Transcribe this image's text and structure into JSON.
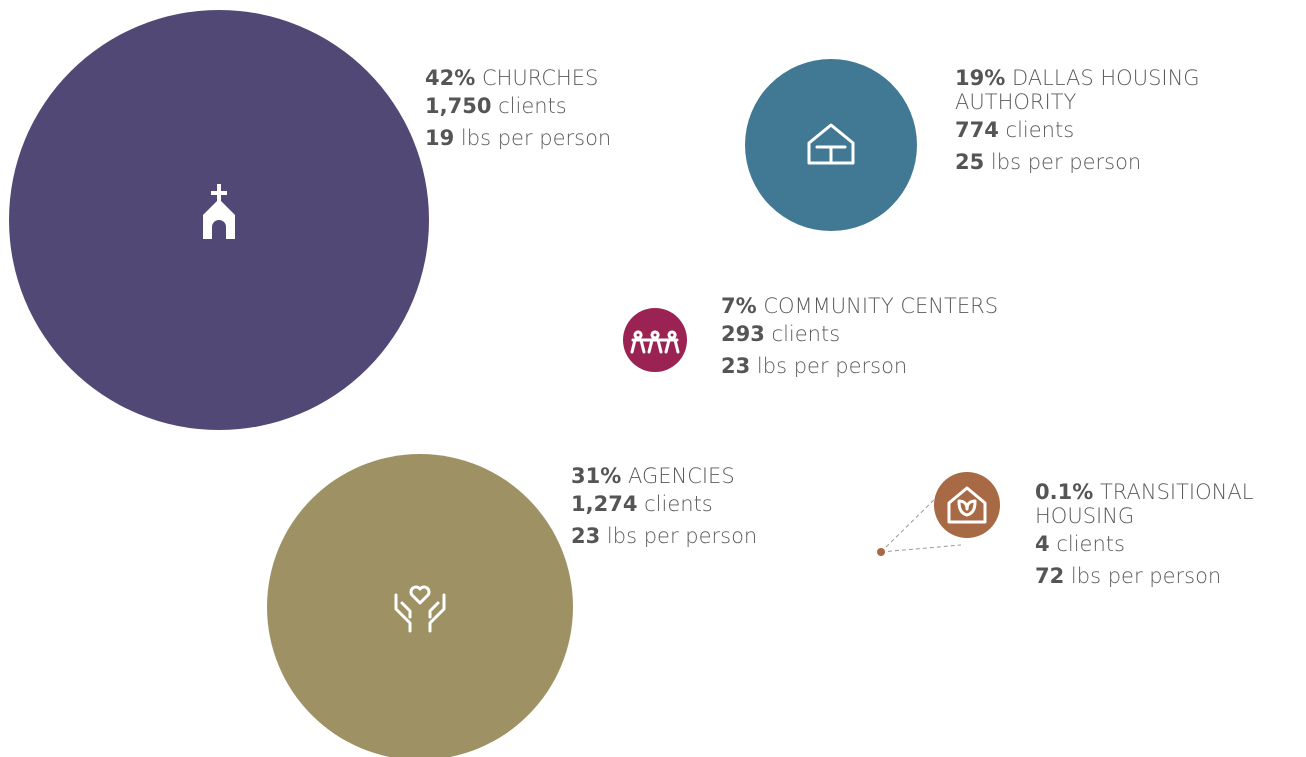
{
  "chart_data": {
    "type": "bubble",
    "categories": [
      "CHURCHES",
      "DALLAS HOUSING AUTHORITY",
      "COMMUNITY CENTERS",
      "AGENCIES",
      "TRANSITIONAL HOUSING"
    ],
    "values": [
      42,
      19,
      7,
      31,
      0.1
    ],
    "value_labels": [
      "42%",
      "19%",
      "7%",
      "31%",
      "0.1%"
    ],
    "colors": [
      "#524876",
      "#417893",
      "#9b2353",
      "#9e9265",
      "#a86a45"
    ],
    "clients": [
      1750,
      774,
      293,
      1274,
      4
    ],
    "clients_labels": [
      "1,750",
      "774",
      "293",
      "1,274",
      "4"
    ],
    "clients_unit": "clients",
    "lbs": [
      19,
      25,
      23,
      23,
      72
    ],
    "lbs_unit": "lbs per person"
  }
}
